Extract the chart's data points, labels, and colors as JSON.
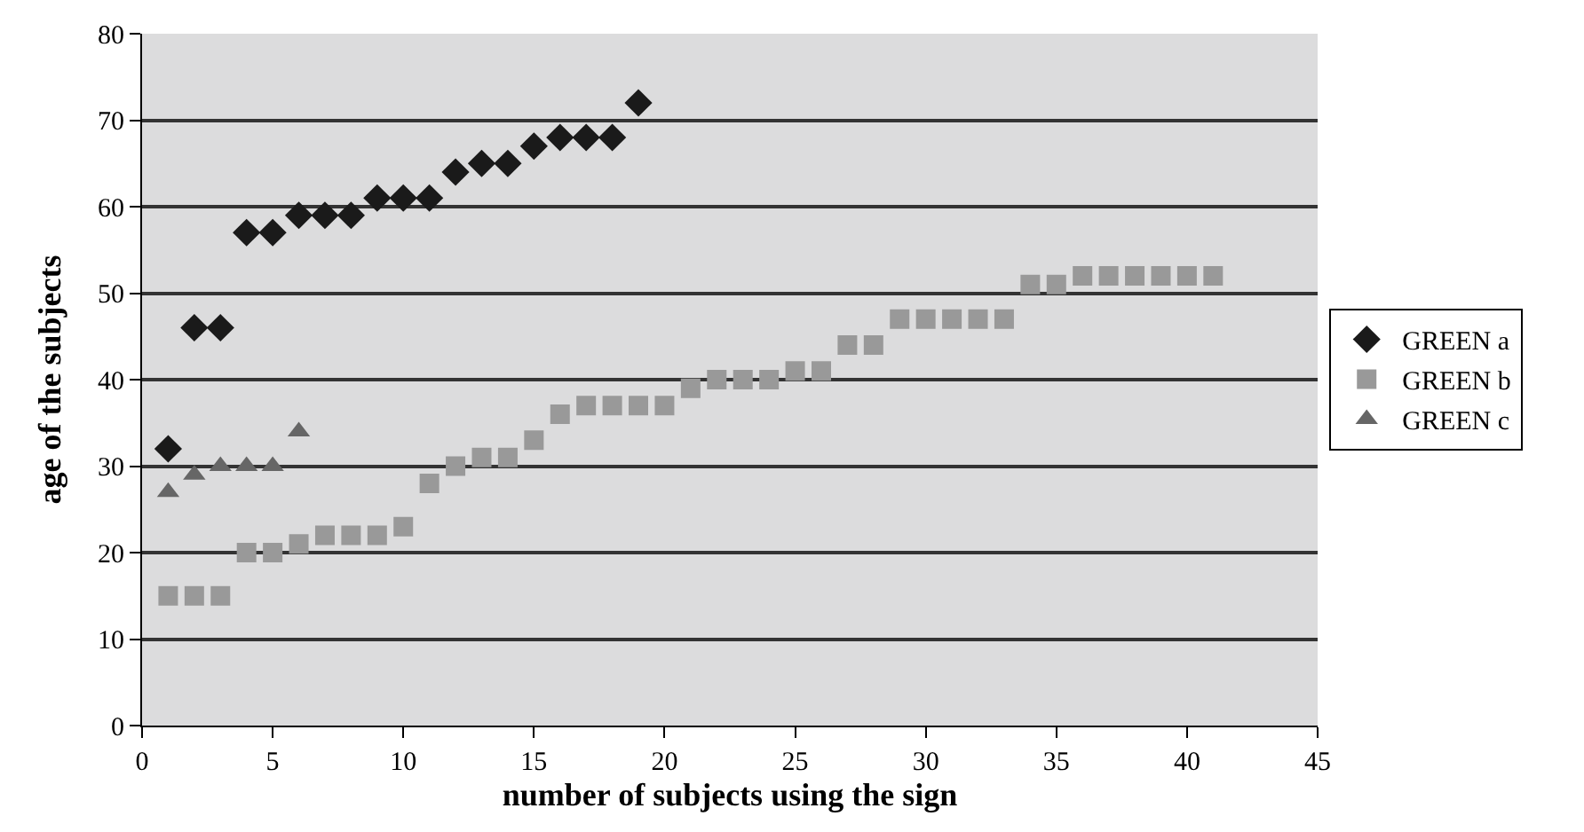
{
  "chart_data": {
    "type": "scatter",
    "xlabel": "number of subjects using the sign",
    "ylabel": "age of the subjects",
    "xlim": [
      0,
      45
    ],
    "xticks": [
      0,
      5,
      10,
      15,
      20,
      25,
      30,
      35,
      40,
      45
    ],
    "ylim": [
      0,
      80
    ],
    "yticks": [
      0,
      10,
      20,
      30,
      40,
      50,
      60,
      70,
      80
    ],
    "grid": "y",
    "legend": "right",
    "series": [
      {
        "name": "GREEN a",
        "color": "#1a1a1a",
        "marker": "diamond",
        "x": [
          1,
          2,
          3,
          4,
          5,
          6,
          7,
          8,
          9,
          10,
          11,
          12,
          13,
          14,
          15,
          16,
          17,
          18,
          19
        ],
        "values": [
          32,
          46,
          46,
          57,
          57,
          59,
          59,
          59,
          61,
          61,
          61,
          64,
          65,
          65,
          67,
          68,
          68,
          68,
          72
        ]
      },
      {
        "name": "GREEN b",
        "color": "#999999",
        "marker": "square",
        "x": [
          1,
          2,
          3,
          4,
          5,
          6,
          7,
          8,
          9,
          10,
          11,
          12,
          13,
          14,
          15,
          16,
          17,
          18,
          19,
          20,
          21,
          22,
          23,
          24,
          25,
          26,
          27,
          28,
          29,
          30,
          31,
          32,
          33,
          34,
          35,
          36,
          37,
          38,
          39,
          40,
          41
        ],
        "values": [
          15,
          15,
          15,
          20,
          20,
          21,
          22,
          22,
          22,
          23,
          28,
          30,
          31,
          31,
          33,
          36,
          37,
          37,
          37,
          37,
          39,
          40,
          40,
          40,
          41,
          41,
          44,
          44,
          47,
          47,
          47,
          47,
          47,
          51,
          51,
          52,
          52,
          52,
          52,
          52,
          52
        ]
      },
      {
        "name": "GREEN c",
        "color": "#666666",
        "marker": "triangle",
        "x": [
          1,
          2,
          3,
          4,
          5,
          6
        ],
        "values": [
          27,
          29,
          30,
          30,
          30,
          34
        ]
      }
    ]
  }
}
